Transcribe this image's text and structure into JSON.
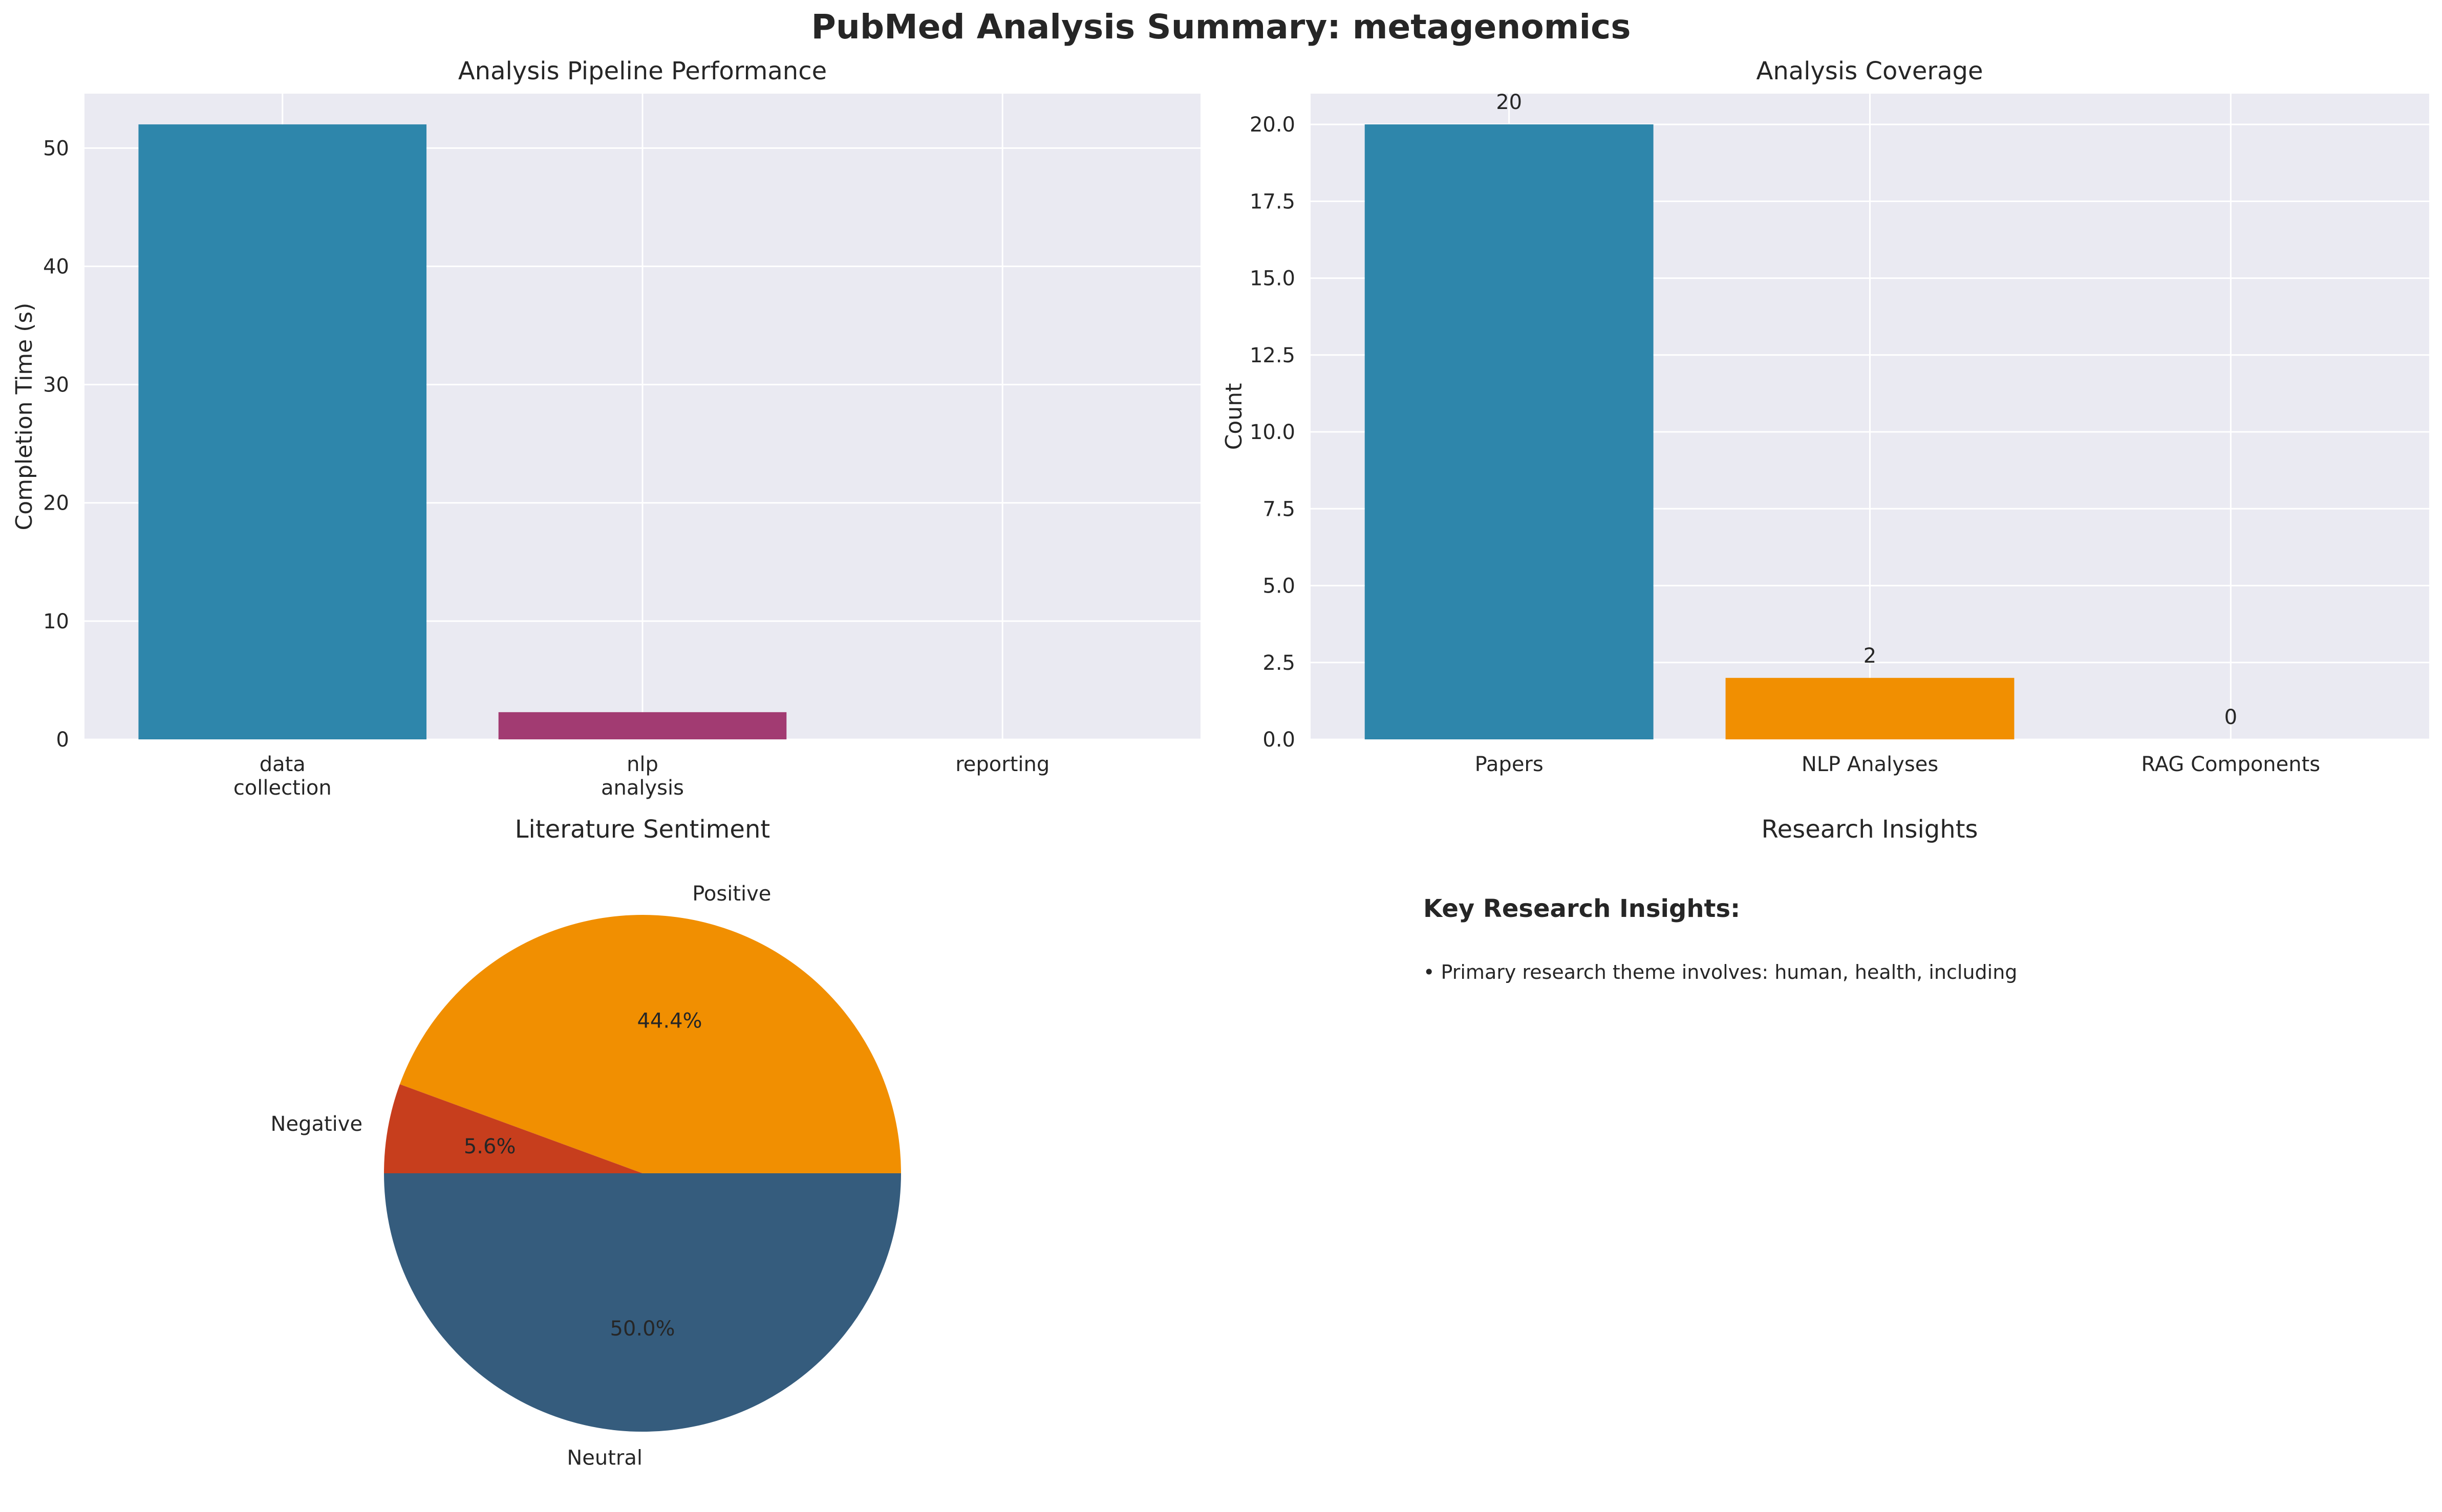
{
  "figure": {
    "suptitle": "PubMed Analysis Summary: metagenomics"
  },
  "chart_data": [
    {
      "type": "bar",
      "title": "Analysis Pipeline Performance",
      "xlabel": "",
      "ylabel": "Completion Time (s)",
      "categories": [
        "data\ncollection",
        "nlp\nanalysis",
        "reporting"
      ],
      "values": [
        52.0,
        2.3,
        0.0
      ],
      "colors": [
        "#2e86ab",
        "#a23b72",
        "#f18f01"
      ],
      "ylim": [
        0,
        54.6
      ],
      "yticks": [
        0,
        10,
        20,
        30,
        40,
        50
      ],
      "grid": true
    },
    {
      "type": "bar",
      "title": "Analysis Coverage",
      "xlabel": "",
      "ylabel": "Count",
      "categories": [
        "Papers",
        "NLP Analyses",
        "RAG Components"
      ],
      "values": [
        20,
        2,
        0
      ],
      "data_labels": [
        "20",
        "2",
        "0"
      ],
      "colors": [
        "#2e86ab",
        "#f18f01",
        "#c73e1d"
      ],
      "ylim": [
        0,
        21
      ],
      "yticks": [
        "0.0",
        "2.5",
        "5.0",
        "7.5",
        "10.0",
        "12.5",
        "15.0",
        "17.5",
        "20.0"
      ],
      "grid": true
    },
    {
      "type": "pie",
      "title": "Literature Sentiment",
      "labels": [
        "Positive",
        "Negative",
        "Neutral"
      ],
      "values": [
        44.4,
        5.6,
        50.0
      ],
      "pct_labels": [
        "44.4%",
        "5.6%",
        "50.0%"
      ],
      "colors": [
        "#f18f01",
        "#c73e1d",
        "#355c7d"
      ],
      "start_angle_deg": 0
    },
    {
      "type": "text",
      "title": "Research Insights",
      "heading": "Key Research Insights:",
      "items": [
        "• Primary research theme involves: human, health, including"
      ]
    }
  ]
}
